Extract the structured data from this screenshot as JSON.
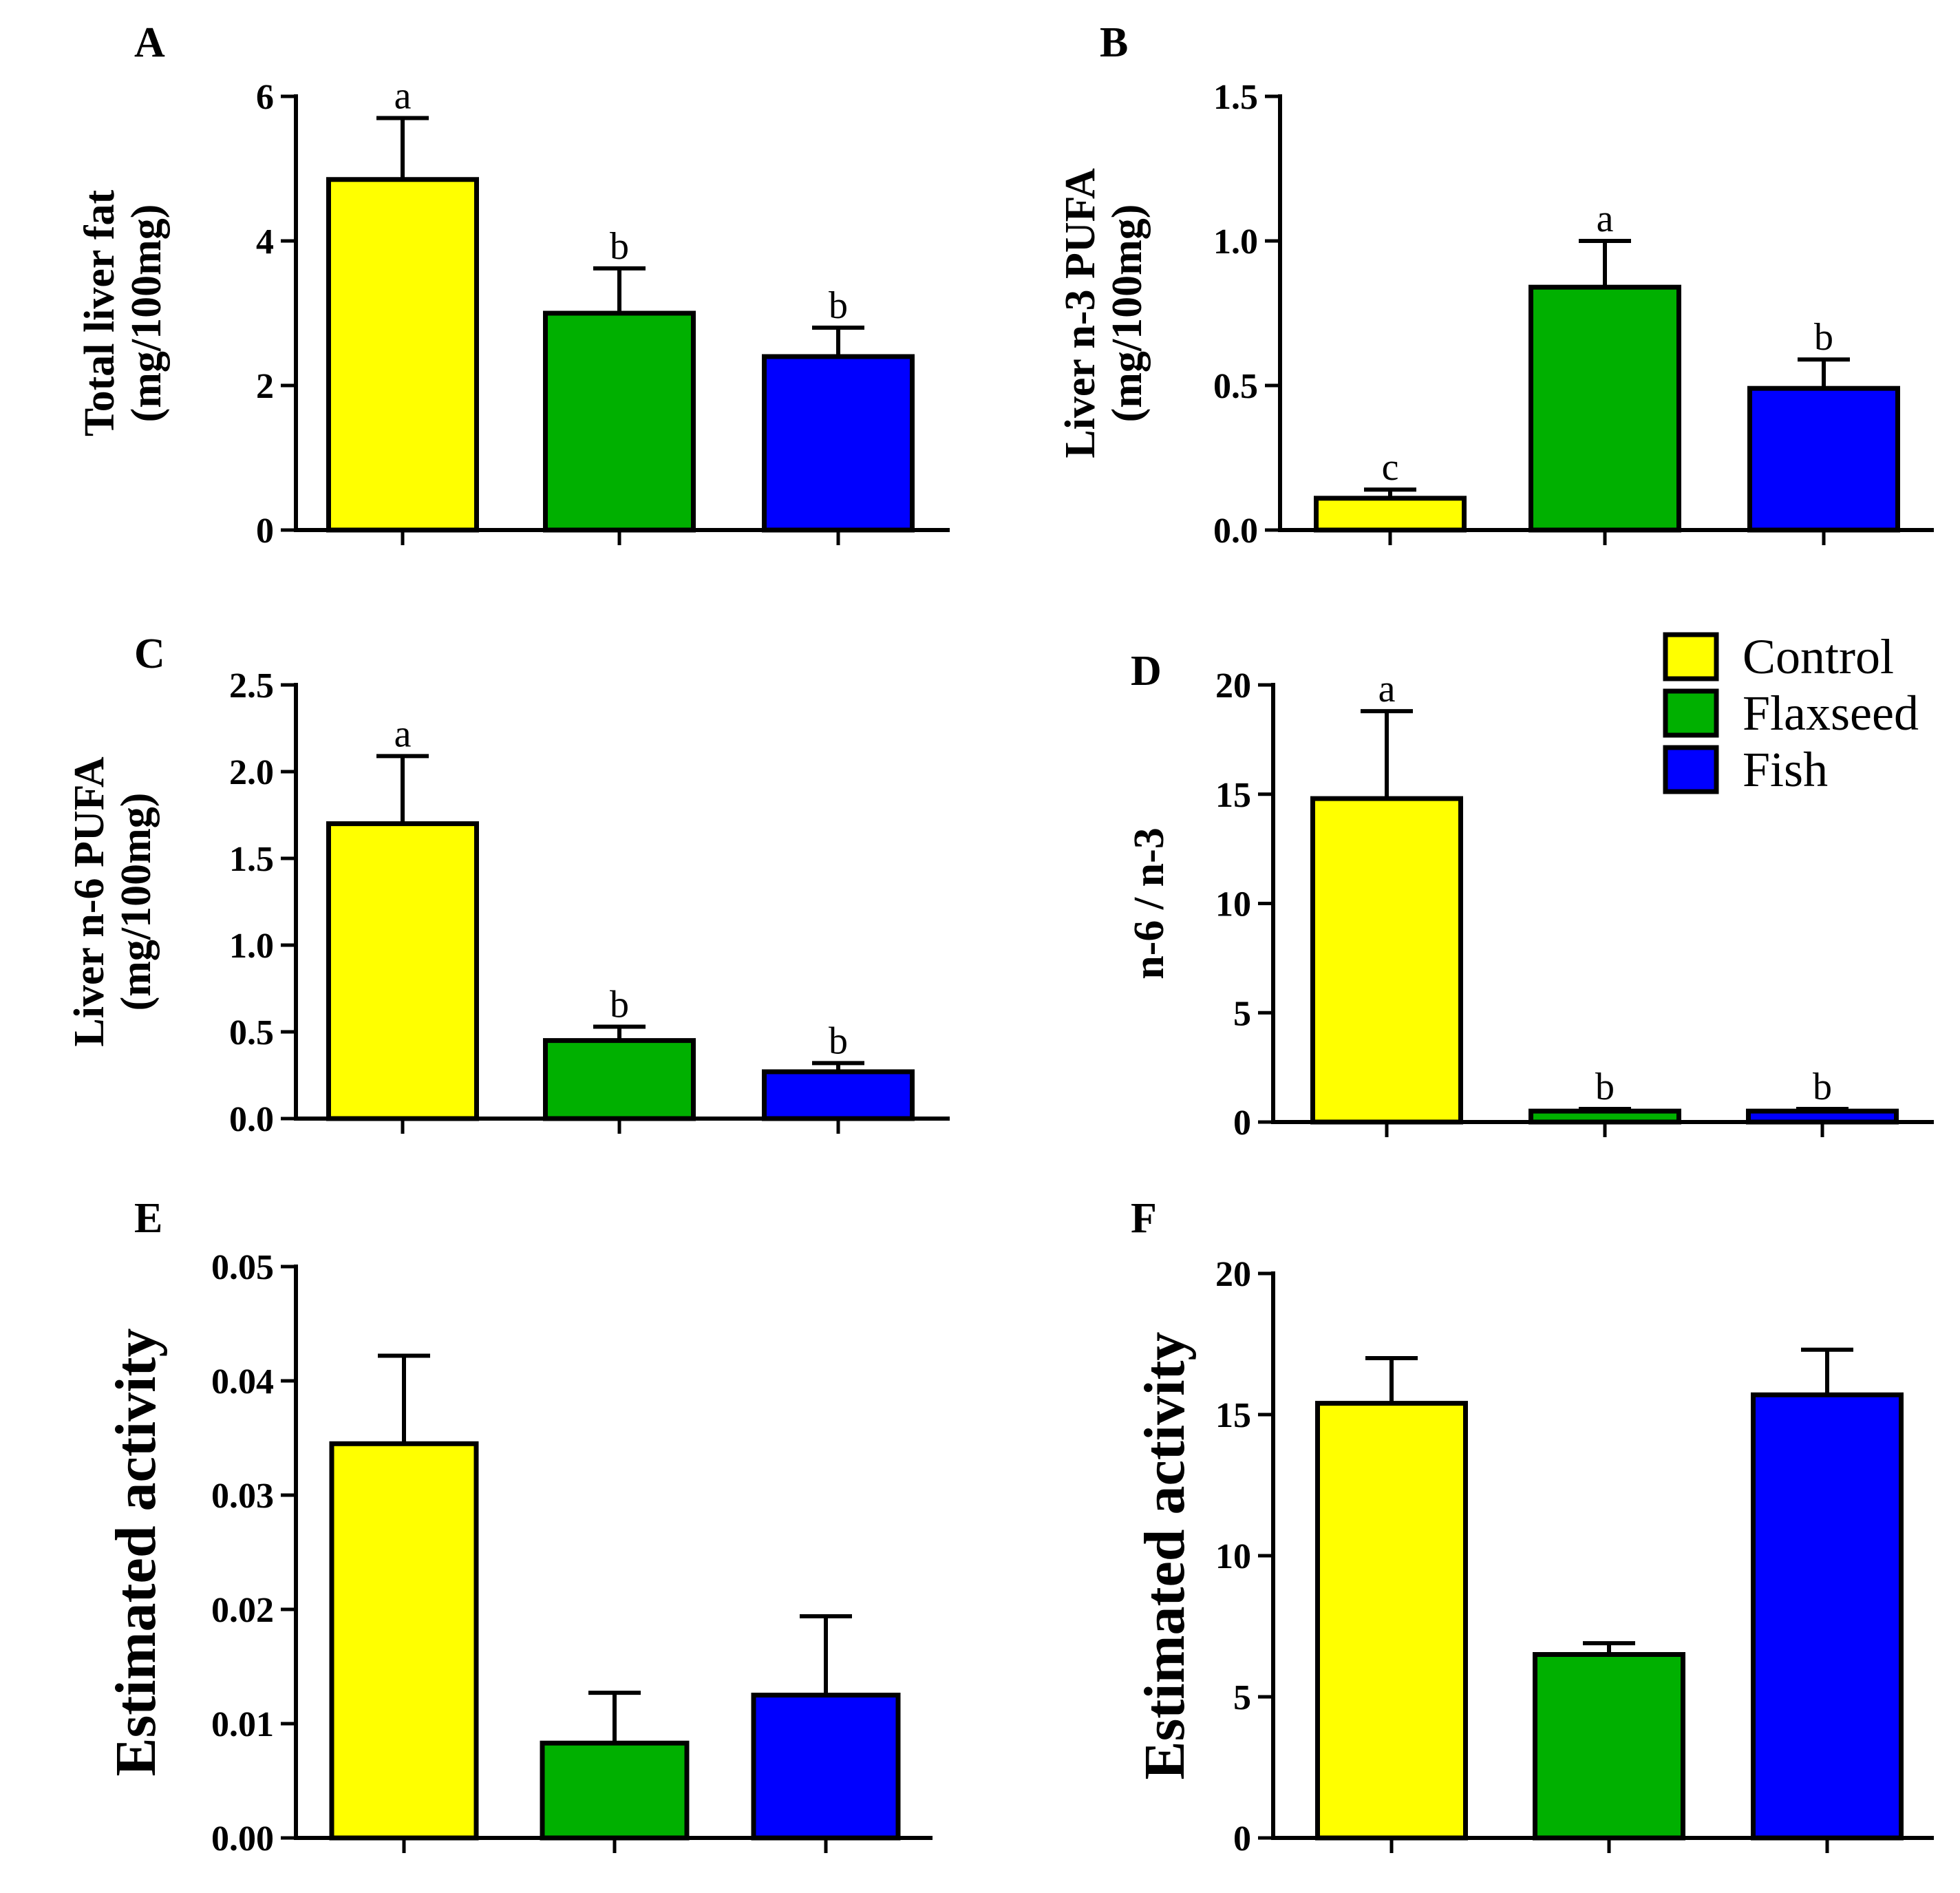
{
  "chart_data": [
    {
      "panel": "A",
      "type": "bar",
      "categories": [
        "Control",
        "Flaxseed",
        "Fish"
      ],
      "values": [
        4.85,
        3.0,
        2.4
      ],
      "errors": [
        0.85,
        0.62,
        0.4
      ],
      "significance": [
        "a",
        "b",
        "b"
      ],
      "ylabel": [
        "Total liver fat",
        "(mg/100mg)"
      ],
      "ylim": [
        0,
        6
      ],
      "yticks": [
        0,
        2,
        4,
        6
      ],
      "ytick_labels": [
        "0",
        "2",
        "4",
        "6"
      ],
      "xlabel": ""
    },
    {
      "panel": "B",
      "type": "bar",
      "categories": [
        "Control",
        "Flaxseed",
        "Fish"
      ],
      "values": [
        0.11,
        0.84,
        0.49
      ],
      "errors": [
        0.03,
        0.16,
        0.1
      ],
      "significance": [
        "c",
        "a",
        "b"
      ],
      "ylabel": [
        "Liver n-3 PUFA",
        "(mg/100mg)"
      ],
      "ylim": [
        0,
        1.5
      ],
      "yticks": [
        0,
        0.5,
        1.0,
        1.5
      ],
      "ytick_labels": [
        "0.0",
        "0.5",
        "1.0",
        "1.5"
      ],
      "xlabel": ""
    },
    {
      "panel": "C",
      "type": "bar",
      "categories": [
        "Control",
        "Flaxseed",
        "Fish"
      ],
      "values": [
        1.7,
        0.45,
        0.27
      ],
      "errors": [
        0.39,
        0.08,
        0.05
      ],
      "significance": [
        "a",
        "b",
        "b"
      ],
      "ylabel": [
        "Liver n-6 PUFA",
        "(mg/100mg)"
      ],
      "ylim": [
        0,
        2.5
      ],
      "yticks": [
        0,
        0.5,
        1.0,
        1.5,
        2.0,
        2.5
      ],
      "ytick_labels": [
        "0.0",
        "0.5",
        "1.0",
        "1.5",
        "2.0",
        "2.5"
      ],
      "xlabel": ""
    },
    {
      "panel": "D",
      "type": "bar",
      "categories": [
        "Control",
        "Flaxseed",
        "Fish"
      ],
      "values": [
        14.8,
        0.5,
        0.5
      ],
      "errors": [
        4.0,
        0.1,
        0.1
      ],
      "significance": [
        "a",
        "b",
        "b"
      ],
      "ylabel": [
        "n-6 / n-3"
      ],
      "ylim": [
        0,
        20
      ],
      "yticks": [
        0,
        5,
        10,
        15,
        20
      ],
      "ytick_labels": [
        "0",
        "5",
        "10",
        "15",
        "20"
      ],
      "xlabel": ""
    },
    {
      "panel": "E",
      "type": "bar",
      "categories": [
        "Control",
        "Flaxseed",
        "Fish"
      ],
      "values": [
        0.0345,
        0.0083,
        0.0125
      ],
      "errors": [
        0.0077,
        0.0044,
        0.0069
      ],
      "significance": [
        "",
        "",
        ""
      ],
      "ylabel": [
        "Estimated activity"
      ],
      "ylim": [
        0,
        0.05
      ],
      "yticks": [
        0,
        0.01,
        0.02,
        0.03,
        0.04,
        0.05
      ],
      "ytick_labels": [
        "0.00",
        "0.01",
        "0.02",
        "0.03",
        "0.04",
        "0.05"
      ],
      "xlabel": ""
    },
    {
      "panel": "F",
      "type": "bar",
      "categories": [
        "Control",
        "Flaxseed",
        "Fish"
      ],
      "values": [
        15.4,
        6.5,
        15.7
      ],
      "errors": [
        1.6,
        0.4,
        1.6
      ],
      "significance": [
        "",
        "",
        ""
      ],
      "ylabel": [
        "Estimated activity"
      ],
      "ylim": [
        0,
        20
      ],
      "yticks": [
        0,
        5,
        10,
        15,
        20
      ],
      "ytick_labels": [
        "0",
        "5",
        "10",
        "15",
        "20"
      ],
      "xlabel": ""
    }
  ],
  "legend": {
    "placement": "top-right",
    "entries": [
      {
        "label": "Control",
        "color": "#ffff00"
      },
      {
        "label": "Flaxseed",
        "color": "#00b000"
      },
      {
        "label": "Fish",
        "color": "#0000ff"
      }
    ]
  },
  "series_colors": [
    "#ffff00",
    "#00b000",
    "#0000ff"
  ]
}
